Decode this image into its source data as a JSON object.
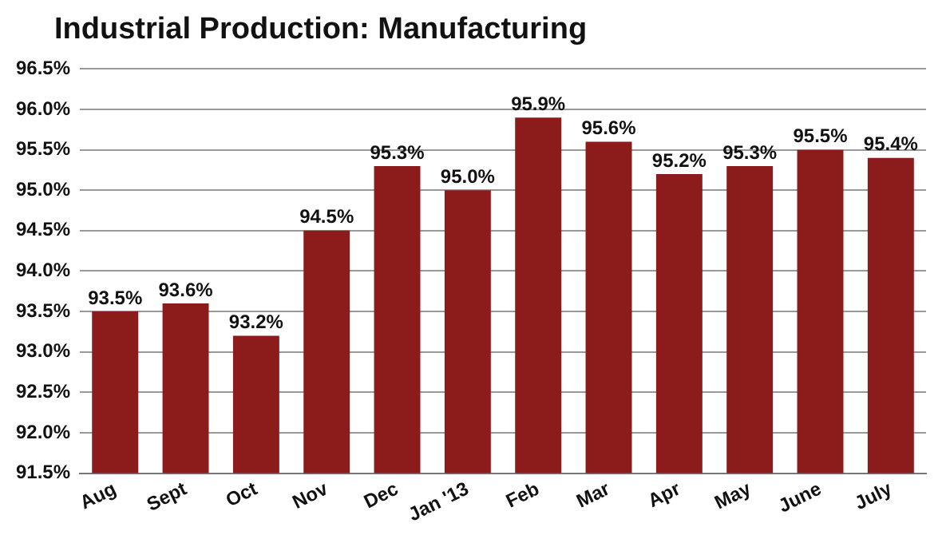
{
  "chart_data": {
    "type": "bar",
    "title": "Industrial Production: Manufacturing",
    "categories": [
      "Aug",
      "Sept",
      "Oct",
      "Nov",
      "Dec",
      "Jan '13",
      "Feb",
      "Mar",
      "Apr",
      "May",
      "June",
      "July"
    ],
    "values": [
      93.5,
      93.6,
      93.2,
      94.5,
      95.3,
      95.0,
      95.9,
      95.6,
      95.2,
      95.3,
      95.5,
      95.4
    ],
    "value_labels": [
      "93.5%",
      "93.6%",
      "93.2%",
      "94.5%",
      "95.3%",
      "95.0%",
      "95.9%",
      "95.6%",
      "95.2%",
      "95.3%",
      "95.5%",
      "95.4%"
    ],
    "color": "#8c1c1c",
    "ylim": [
      91.5,
      96.5
    ],
    "yticks": [
      {
        "value": 91.5,
        "label": "91.5%"
      },
      {
        "value": 92,
        "label": "92.0%"
      },
      {
        "value": 92.5,
        "label": "92.5%"
      },
      {
        "value": 93,
        "label": "93.0%"
      },
      {
        "value": 93.5,
        "label": "93.5%"
      },
      {
        "value": 94,
        "label": "94.0%"
      },
      {
        "value": 94.5,
        "label": "94.5%"
      },
      {
        "value": 95,
        "label": "95.0%"
      },
      {
        "value": 95.5,
        "label": "95.5%"
      },
      {
        "value": 96,
        "label": "96.0%"
      },
      {
        "value": 96.5,
        "label": "96.5%"
      }
    ],
    "grid": "y"
  }
}
